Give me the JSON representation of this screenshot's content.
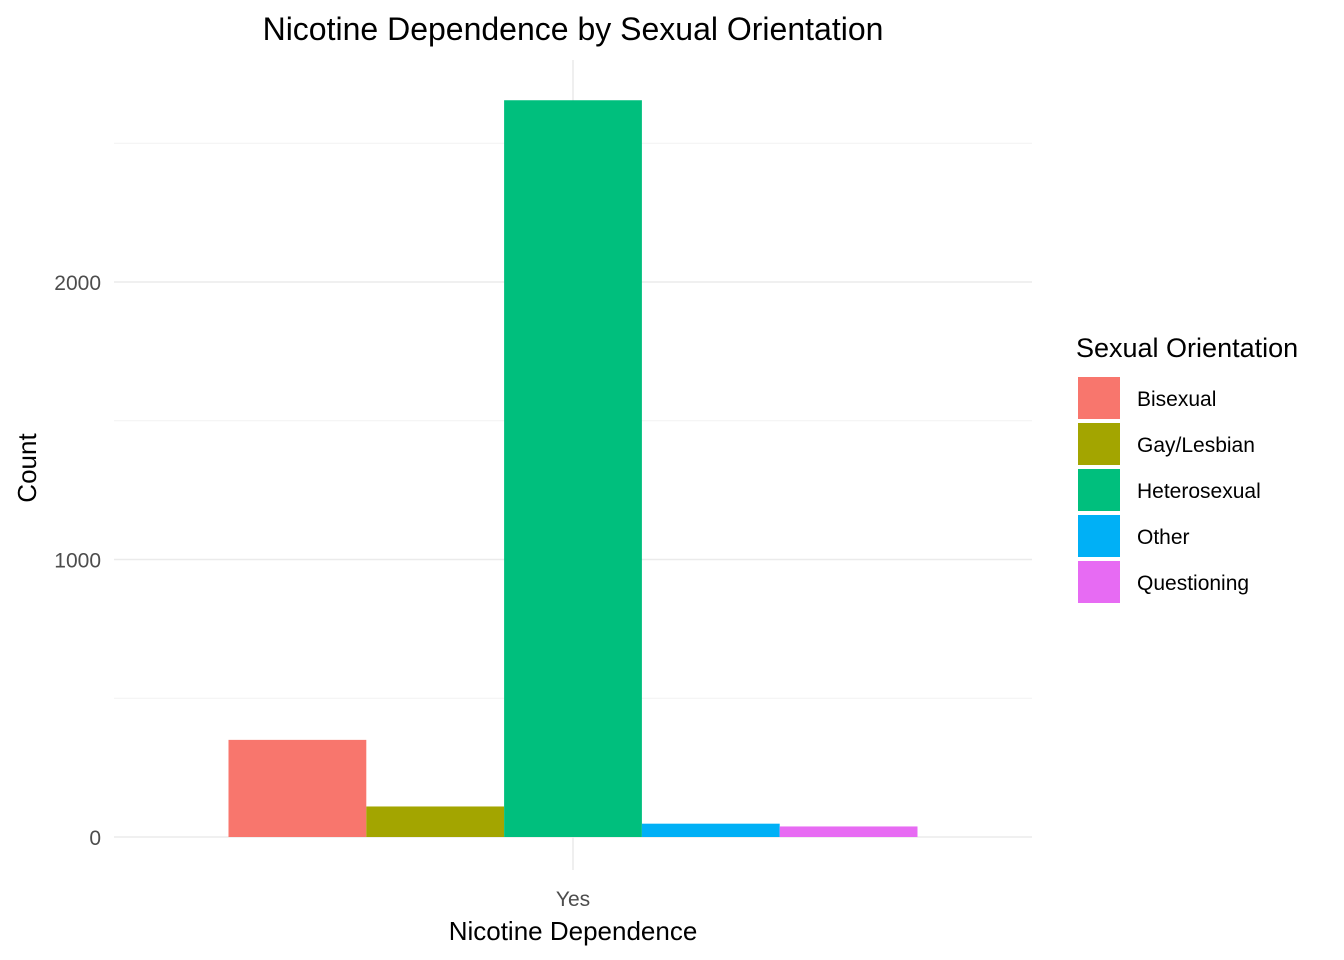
{
  "chart_data": {
    "type": "bar",
    "title": "Nicotine Dependence by Sexual Orientation",
    "xlabel": "Nicotine Dependence",
    "ylabel": "Count",
    "categories": [
      "Yes"
    ],
    "ylim": [
      0,
      2800
    ],
    "yticks": [
      0,
      1000,
      2000
    ],
    "yticks_minor": [
      500,
      1500,
      2500
    ],
    "grid": true,
    "legend": {
      "title": "Sexual Orientation",
      "position": "right"
    },
    "series": [
      {
        "name": "Bisexual",
        "values": [
          350
        ],
        "color": "#F8766D"
      },
      {
        "name": "Gay/Lesbian",
        "values": [
          110
        ],
        "color": "#A3A500"
      },
      {
        "name": "Heterosexual",
        "values": [
          2655
        ],
        "color": "#00BF7D"
      },
      {
        "name": "Other",
        "values": [
          48
        ],
        "color": "#00B0F6"
      },
      {
        "name": "Questioning",
        "values": [
          38
        ],
        "color": "#E76BF3"
      }
    ]
  }
}
